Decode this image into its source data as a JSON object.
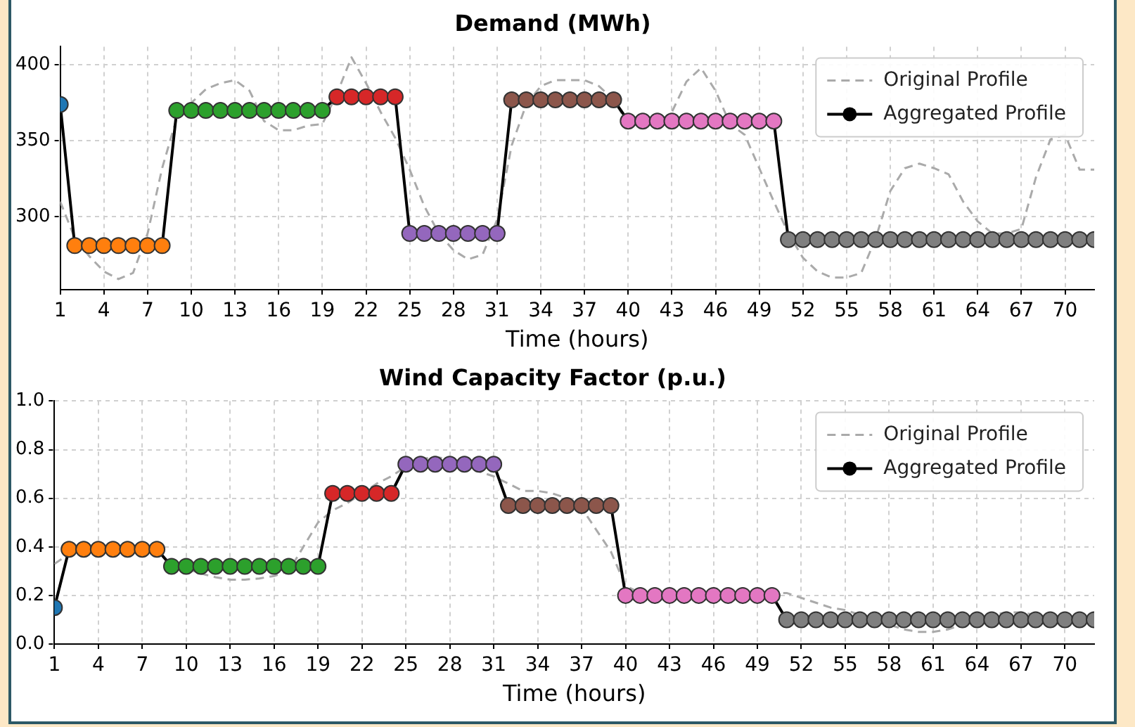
{
  "chart_data": [
    {
      "type": "line",
      "title": "Demand (MWh)",
      "xlabel": "Time (hours)",
      "x": [
        1,
        2,
        3,
        4,
        5,
        6,
        7,
        8,
        9,
        10,
        11,
        12,
        13,
        14,
        15,
        16,
        17,
        18,
        19,
        20,
        21,
        22,
        23,
        24,
        25,
        26,
        27,
        28,
        29,
        30,
        31,
        32,
        33,
        34,
        35,
        36,
        37,
        38,
        39,
        40,
        41,
        42,
        43,
        44,
        45,
        46,
        47,
        48,
        49,
        50,
        51,
        52,
        53,
        54,
        55,
        56,
        57,
        58,
        59,
        60,
        61,
        62,
        63,
        64,
        65,
        66,
        67,
        68,
        69,
        70,
        71,
        72
      ],
      "xlim": [
        1,
        72
      ],
      "xticks": [
        1,
        4,
        7,
        10,
        13,
        16,
        19,
        22,
        25,
        28,
        31,
        34,
        37,
        40,
        43,
        46,
        49,
        52,
        55,
        58,
        61,
        64,
        67,
        70
      ],
      "ylim": [
        252,
        412
      ],
      "yticks": [
        300,
        350,
        400
      ],
      "grid": true,
      "legend": "top right",
      "series": [
        {
          "name": "Original Profile",
          "type": "line",
          "color": "#aaaaaa",
          "line_style": "dashed",
          "marker": "none",
          "values": [
            310,
            286,
            274,
            264,
            259,
            263,
            289,
            332,
            365,
            375,
            384,
            388,
            390,
            383,
            363,
            357,
            357,
            360,
            361,
            381,
            405,
            388,
            369,
            352,
            331,
            307,
            289,
            278,
            272,
            275,
            298,
            347,
            374,
            386,
            390,
            390,
            390,
            386,
            377,
            361,
            360,
            361,
            369,
            389,
            398,
            383,
            361,
            354,
            332,
            310,
            289,
            273,
            264,
            260,
            260,
            263,
            286,
            317,
            332,
            335,
            332,
            328,
            310,
            297,
            289,
            289,
            292,
            326,
            351,
            354,
            331,
            331
          ]
        },
        {
          "name": "Aggregated Profile",
          "type": "line",
          "color": "#000000",
          "line_style": "solid",
          "marker": "circle",
          "values": [
            374,
            281,
            281,
            281,
            281,
            281,
            281,
            281,
            370,
            370,
            370,
            370,
            370,
            370,
            370,
            370,
            370,
            370,
            370,
            379,
            379,
            379,
            379,
            379,
            289,
            289,
            289,
            289,
            289,
            289,
            289,
            377,
            377,
            377,
            377,
            377,
            377,
            377,
            377,
            363,
            363,
            363,
            363,
            363,
            363,
            363,
            363,
            363,
            363,
            363,
            285,
            285,
            285,
            285,
            285,
            285,
            285,
            285,
            285,
            285,
            285,
            285,
            285,
            285,
            285,
            285,
            285,
            285,
            285,
            285,
            285,
            285
          ],
          "colors": [
            "#1f77b4",
            "#ff7f0e",
            "#ff7f0e",
            "#ff7f0e",
            "#ff7f0e",
            "#ff7f0e",
            "#ff7f0e",
            "#ff7f0e",
            "#2ca02c",
            "#2ca02c",
            "#2ca02c",
            "#2ca02c",
            "#2ca02c",
            "#2ca02c",
            "#2ca02c",
            "#2ca02c",
            "#2ca02c",
            "#2ca02c",
            "#2ca02c",
            "#d62728",
            "#d62728",
            "#d62728",
            "#d62728",
            "#d62728",
            "#9467bd",
            "#9467bd",
            "#9467bd",
            "#9467bd",
            "#9467bd",
            "#9467bd",
            "#9467bd",
            "#8c564b",
            "#8c564b",
            "#8c564b",
            "#8c564b",
            "#8c564b",
            "#8c564b",
            "#8c564b",
            "#8c564b",
            "#e377c2",
            "#e377c2",
            "#e377c2",
            "#e377c2",
            "#e377c2",
            "#e377c2",
            "#e377c2",
            "#e377c2",
            "#e377c2",
            "#e377c2",
            "#e377c2",
            "#7f7f7f",
            "#7f7f7f",
            "#7f7f7f",
            "#7f7f7f",
            "#7f7f7f",
            "#7f7f7f",
            "#7f7f7f",
            "#7f7f7f",
            "#7f7f7f",
            "#7f7f7f",
            "#7f7f7f",
            "#7f7f7f",
            "#7f7f7f",
            "#7f7f7f",
            "#7f7f7f",
            "#7f7f7f",
            "#7f7f7f",
            "#7f7f7f",
            "#7f7f7f",
            "#7f7f7f",
            "#7f7f7f",
            "#7f7f7f"
          ]
        }
      ]
    },
    {
      "type": "line",
      "title": "Wind Capacity Factor (p.u.)",
      "xlabel": "Time (hours)",
      "x": [
        1,
        2,
        3,
        4,
        5,
        6,
        7,
        8,
        9,
        10,
        11,
        12,
        13,
        14,
        15,
        16,
        17,
        18,
        19,
        20,
        21,
        22,
        23,
        24,
        25,
        26,
        27,
        28,
        29,
        30,
        31,
        32,
        33,
        34,
        35,
        36,
        37,
        38,
        39,
        40,
        41,
        42,
        43,
        44,
        45,
        46,
        47,
        48,
        49,
        50,
        51,
        52,
        53,
        54,
        55,
        56,
        57,
        58,
        59,
        60,
        61,
        62,
        63,
        64,
        65,
        66,
        67,
        68,
        69,
        70,
        71,
        72
      ],
      "xlim": [
        1,
        72
      ],
      "xticks": [
        1,
        4,
        7,
        10,
        13,
        16,
        19,
        22,
        25,
        28,
        31,
        34,
        37,
        40,
        43,
        46,
        49,
        52,
        55,
        58,
        61,
        64,
        67,
        70
      ],
      "ylim": [
        0,
        1
      ],
      "yticks": [
        {
          "value": 0,
          "label": "0.0"
        },
        0.2,
        0.4,
        0.6,
        0.8,
        {
          "value": 1,
          "label": "1.0"
        }
      ],
      "grid": true,
      "legend": "top right",
      "series": [
        {
          "name": "Original Profile",
          "type": "line",
          "color": "#aaaaaa",
          "line_style": "dashed",
          "marker": "none",
          "values": [
            0.33,
            0.37,
            0.38,
            0.38,
            0.38,
            0.38,
            0.38,
            0.38,
            0.33,
            0.31,
            0.29,
            0.275,
            0.265,
            0.265,
            0.27,
            0.28,
            0.3,
            0.4,
            0.5,
            0.55,
            0.58,
            0.62,
            0.66,
            0.69,
            0.73,
            0.76,
            0.77,
            0.76,
            0.74,
            0.71,
            0.69,
            0.66,
            0.63,
            0.63,
            0.62,
            0.6,
            0.56,
            0.47,
            0.38,
            0.24,
            0.21,
            0.21,
            0.21,
            0.21,
            0.21,
            0.21,
            0.21,
            0.21,
            0.21,
            0.21,
            0.21,
            0.19,
            0.17,
            0.15,
            0.14,
            0.12,
            0.1,
            0.08,
            0.06,
            0.05,
            0.05,
            0.06,
            0.08,
            0.1,
            0.12,
            0.13,
            0.13,
            0.12,
            0.11,
            0.1,
            0.1,
            0.1
          ]
        },
        {
          "name": "Aggregated Profile",
          "type": "line",
          "color": "#000000",
          "line_style": "solid",
          "marker": "circle",
          "values": [
            0.15,
            0.39,
            0.39,
            0.39,
            0.39,
            0.39,
            0.39,
            0.39,
            0.32,
            0.32,
            0.32,
            0.32,
            0.32,
            0.32,
            0.32,
            0.32,
            0.32,
            0.32,
            0.32,
            0.62,
            0.62,
            0.62,
            0.62,
            0.62,
            0.74,
            0.74,
            0.74,
            0.74,
            0.74,
            0.74,
            0.74,
            0.57,
            0.57,
            0.57,
            0.57,
            0.57,
            0.57,
            0.57,
            0.57,
            0.2,
            0.2,
            0.2,
            0.2,
            0.2,
            0.2,
            0.2,
            0.2,
            0.2,
            0.2,
            0.2,
            0.1,
            0.1,
            0.1,
            0.1,
            0.1,
            0.1,
            0.1,
            0.1,
            0.1,
            0.1,
            0.1,
            0.1,
            0.1,
            0.1,
            0.1,
            0.1,
            0.1,
            0.1,
            0.1,
            0.1,
            0.1,
            0.1
          ],
          "colors": [
            "#1f77b4",
            "#ff7f0e",
            "#ff7f0e",
            "#ff7f0e",
            "#ff7f0e",
            "#ff7f0e",
            "#ff7f0e",
            "#ff7f0e",
            "#2ca02c",
            "#2ca02c",
            "#2ca02c",
            "#2ca02c",
            "#2ca02c",
            "#2ca02c",
            "#2ca02c",
            "#2ca02c",
            "#2ca02c",
            "#2ca02c",
            "#2ca02c",
            "#d62728",
            "#d62728",
            "#d62728",
            "#d62728",
            "#d62728",
            "#9467bd",
            "#9467bd",
            "#9467bd",
            "#9467bd",
            "#9467bd",
            "#9467bd",
            "#9467bd",
            "#8c564b",
            "#8c564b",
            "#8c564b",
            "#8c564b",
            "#8c564b",
            "#8c564b",
            "#8c564b",
            "#8c564b",
            "#e377c2",
            "#e377c2",
            "#e377c2",
            "#e377c2",
            "#e377c2",
            "#e377c2",
            "#e377c2",
            "#e377c2",
            "#e377c2",
            "#e377c2",
            "#e377c2",
            "#7f7f7f",
            "#7f7f7f",
            "#7f7f7f",
            "#7f7f7f",
            "#7f7f7f",
            "#7f7f7f",
            "#7f7f7f",
            "#7f7f7f",
            "#7f7f7f",
            "#7f7f7f",
            "#7f7f7f",
            "#7f7f7f",
            "#7f7f7f",
            "#7f7f7f",
            "#7f7f7f",
            "#7f7f7f",
            "#7f7f7f",
            "#7f7f7f",
            "#7f7f7f",
            "#7f7f7f",
            "#7f7f7f",
            "#7f7f7f"
          ]
        }
      ]
    }
  ]
}
